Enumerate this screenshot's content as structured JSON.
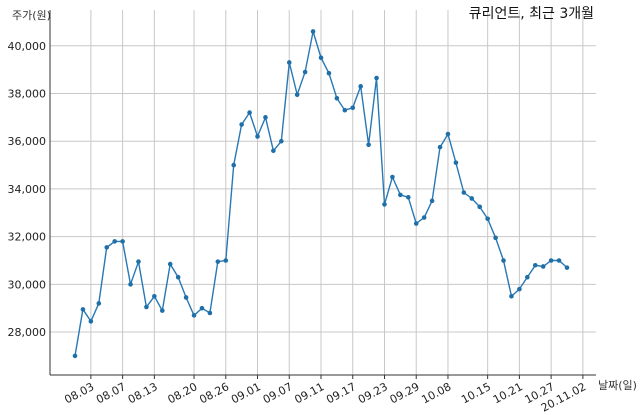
{
  "chart_data": {
    "type": "line",
    "title": "큐리언트, 최근 3개월",
    "ylabel": "주가(원)",
    "xlabel": "날짜(일)",
    "ylim": [
      26200,
      41500
    ],
    "grid": true,
    "colors": {
      "line": "#2878b5",
      "marker": "#1f6fa8",
      "grid": "#c8c8c8",
      "axis": "#333333"
    },
    "yticks": [
      28000,
      30000,
      32000,
      34000,
      36000,
      38000,
      40000
    ],
    "ytick_labels": [
      "28,000",
      "30,000",
      "32,000",
      "34,000",
      "36,000",
      "38,000",
      "40,000"
    ],
    "xticks": [
      {
        "label": "08.03",
        "index": 2
      },
      {
        "label": "08.07",
        "index": 6
      },
      {
        "label": "08.13",
        "index": 10
      },
      {
        "label": "08.20",
        "index": 15
      },
      {
        "label": "08.26",
        "index": 19
      },
      {
        "label": "09.01",
        "index": 23
      },
      {
        "label": "09.07",
        "index": 27
      },
      {
        "label": "09.11",
        "index": 31
      },
      {
        "label": "09.17",
        "index": 35
      },
      {
        "label": "09.23",
        "index": 39
      },
      {
        "label": "09.29",
        "index": 43
      },
      {
        "label": "10.08",
        "index": 47
      },
      {
        "label": "10.15",
        "index": 52
      },
      {
        "label": "10.21",
        "index": 56
      },
      {
        "label": "10.27",
        "index": 60
      },
      {
        "label": "20.11.02",
        "index": 64
      }
    ],
    "series": [
      {
        "values": [
          27000,
          28950,
          28450,
          29200,
          31550,
          31800,
          31800,
          30000,
          30950,
          29050,
          29500,
          28900,
          30850,
          30300,
          29450,
          28700,
          29000,
          28800,
          30950,
          31000,
          35000,
          36700,
          37200,
          36200,
          37000,
          35600,
          36000,
          39300,
          37950,
          38900,
          40600,
          39500,
          38850,
          37800,
          37300,
          37400,
          38300,
          35850,
          38650,
          33350,
          34500,
          33750,
          33650,
          32550,
          32800,
          33500,
          35750,
          36300,
          35100,
          33850,
          33600,
          33250,
          32750,
          31950,
          31000,
          29500,
          29800,
          30300,
          30800,
          30750,
          31000,
          31000,
          30700
        ]
      }
    ]
  }
}
